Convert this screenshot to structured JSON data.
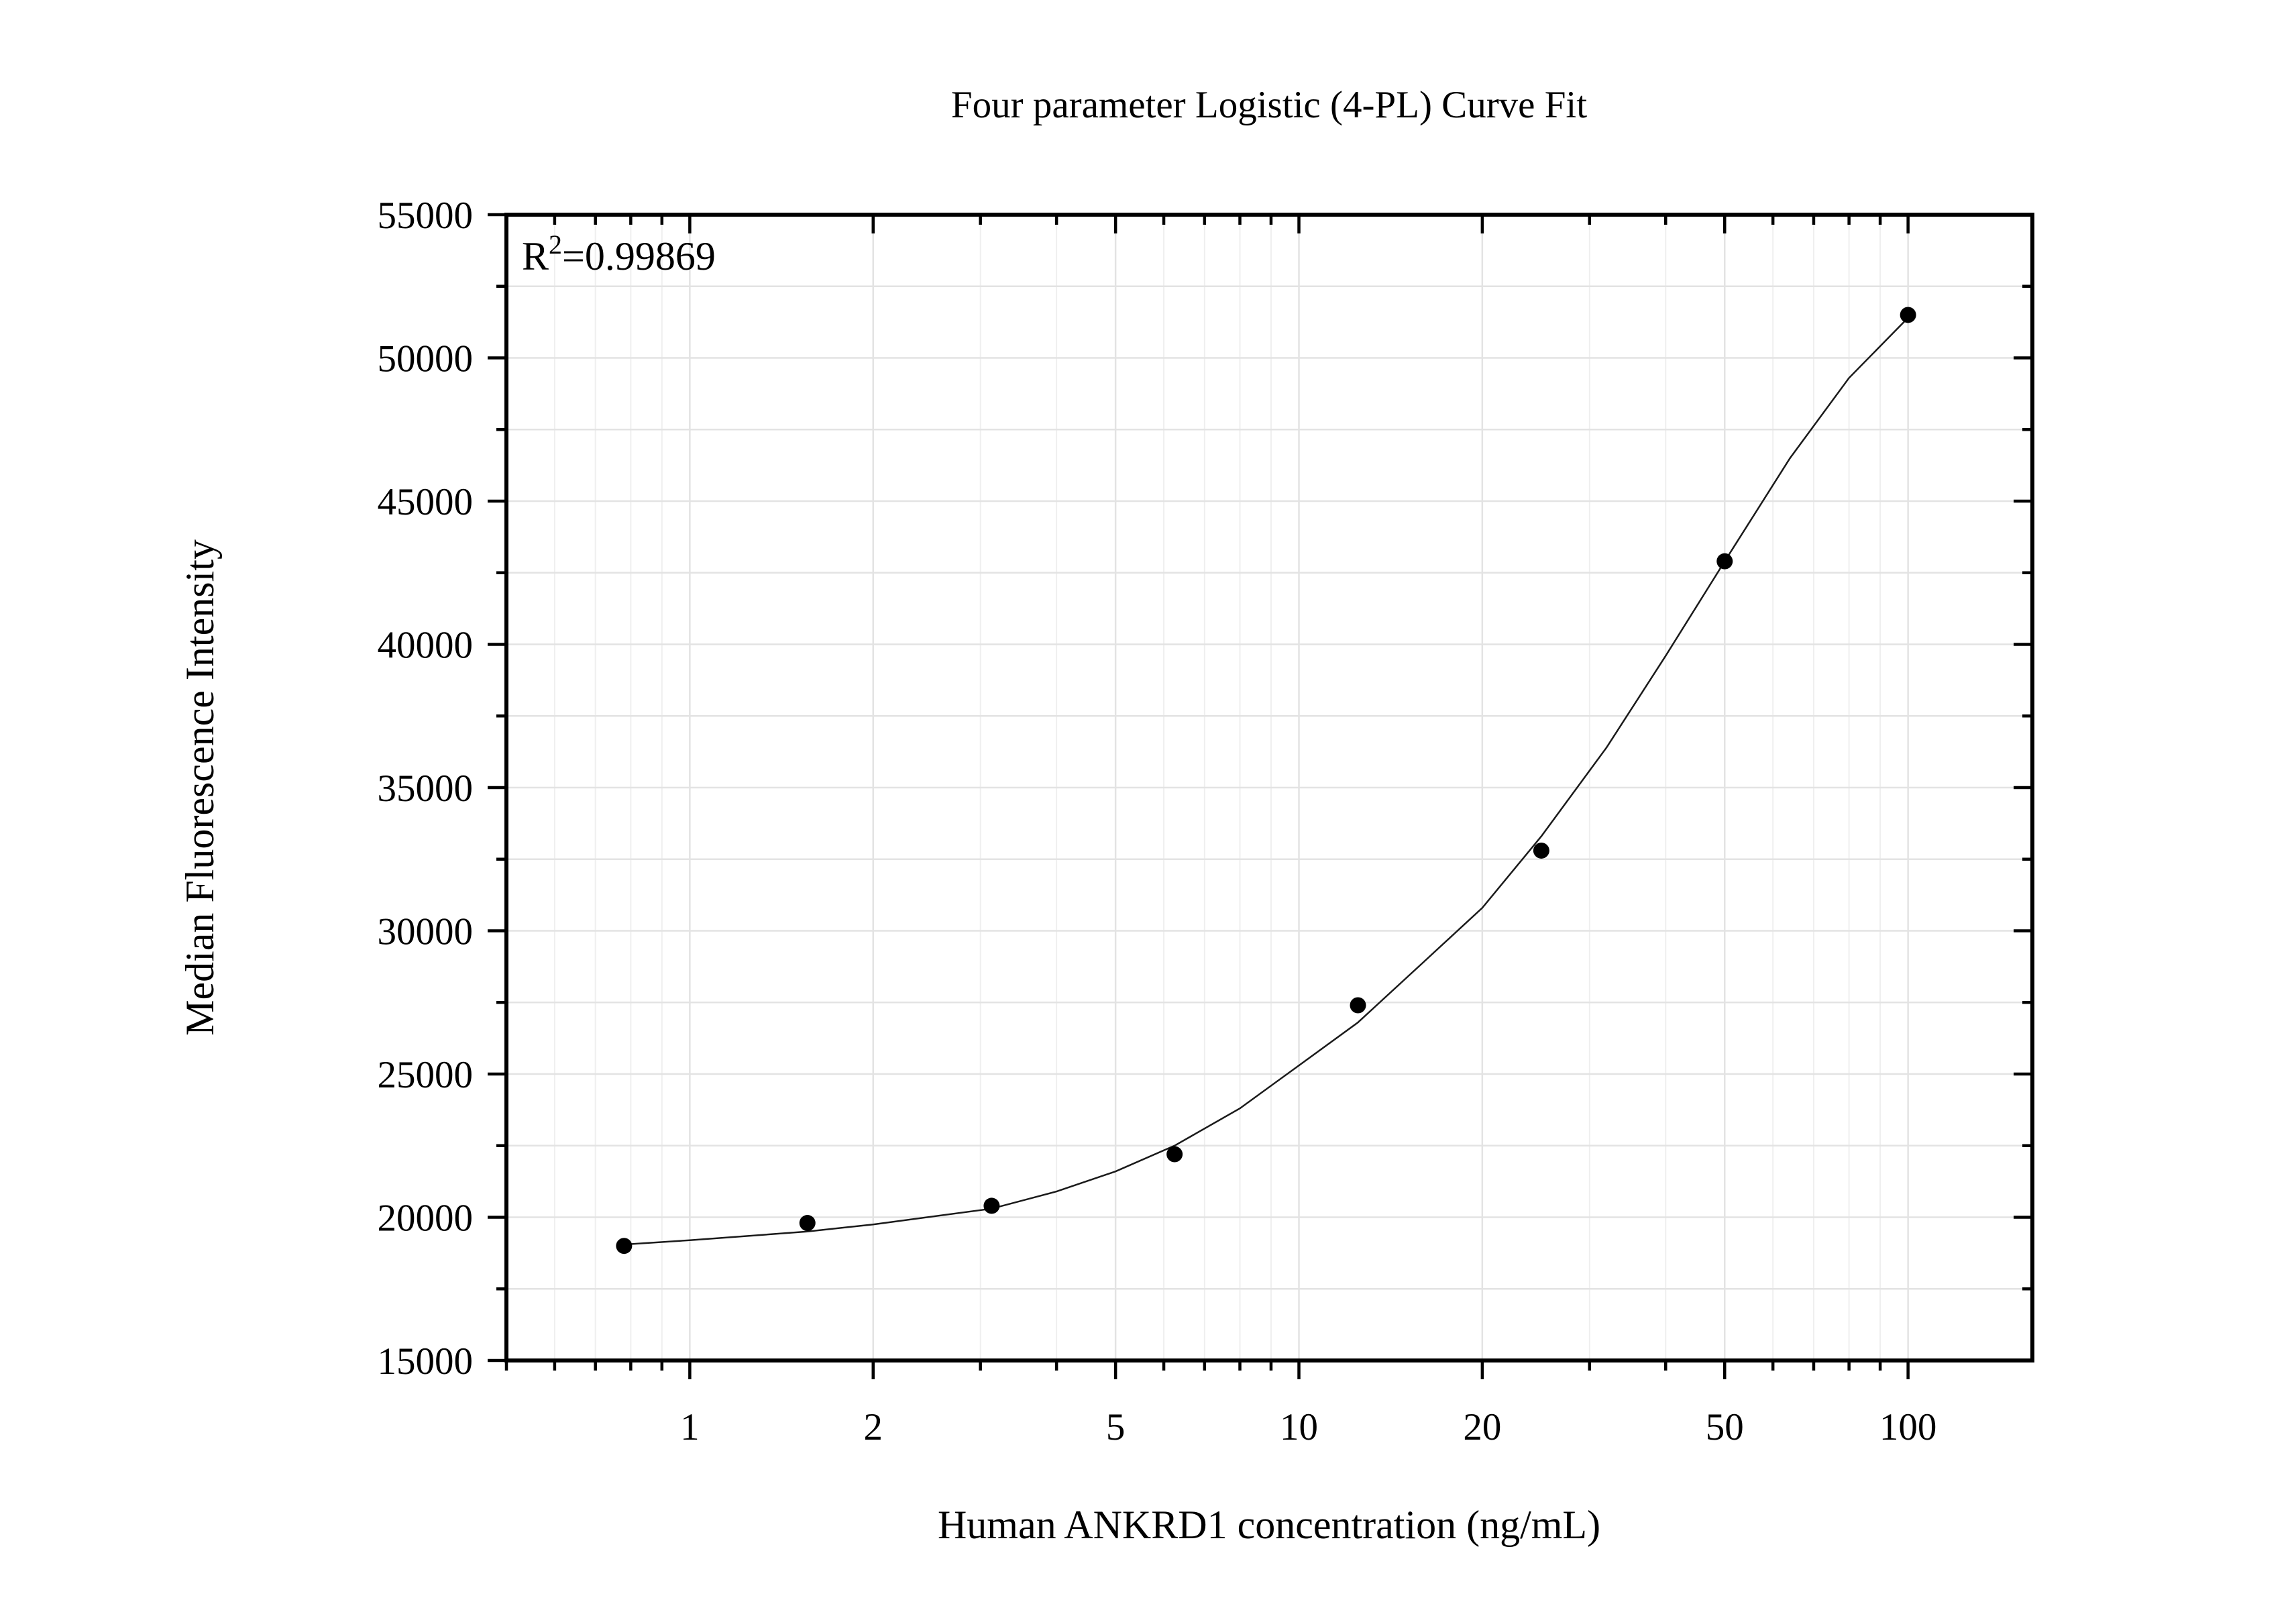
{
  "chart_data": {
    "type": "scatter",
    "title": "Four parameter Logistic (4-PL) Curve Fit",
    "xlabel": "Human ANKRD1 concentration (ng/mL)",
    "ylabel": "Median Fluorescence Intensity",
    "x_scale": "log",
    "xlim": [
      0.5,
      160
    ],
    "ylim": [
      15000,
      55000
    ],
    "x_ticks": [
      1,
      2,
      5,
      10,
      20,
      50,
      100
    ],
    "x_tick_labels": [
      "1",
      "2",
      "5",
      "10",
      "20",
      "50",
      "100"
    ],
    "y_ticks": [
      15000,
      20000,
      25000,
      30000,
      35000,
      40000,
      45000,
      50000,
      55000
    ],
    "y_tick_labels": [
      "15000",
      "20000",
      "25000",
      "30000",
      "35000",
      "40000",
      "45000",
      "50000",
      "55000"
    ],
    "grid": true,
    "annotation": {
      "base": "R",
      "superscript": "2",
      "value": "=0.99869"
    },
    "series": [
      {
        "kind": "points",
        "x": [
          0.78,
          1.56,
          3.13,
          6.25,
          12.5,
          25,
          50,
          100
        ],
        "y": [
          19000,
          19800,
          20400,
          22200,
          27400,
          32800,
          42900,
          51500
        ]
      },
      {
        "kind": "fit-curve",
        "model": "4PL",
        "x": [
          0.78,
          1,
          1.56,
          2,
          3.13,
          4,
          5,
          6.25,
          8,
          10,
          12.5,
          16,
          20,
          25,
          32,
          40,
          50,
          64,
          80,
          100
        ],
        "y": [
          19050,
          19200,
          19500,
          19750,
          20300,
          20900,
          21600,
          22500,
          23800,
          25300,
          26800,
          28900,
          30800,
          33300,
          36400,
          39600,
          42900,
          46500,
          49300,
          51400
        ]
      }
    ]
  }
}
